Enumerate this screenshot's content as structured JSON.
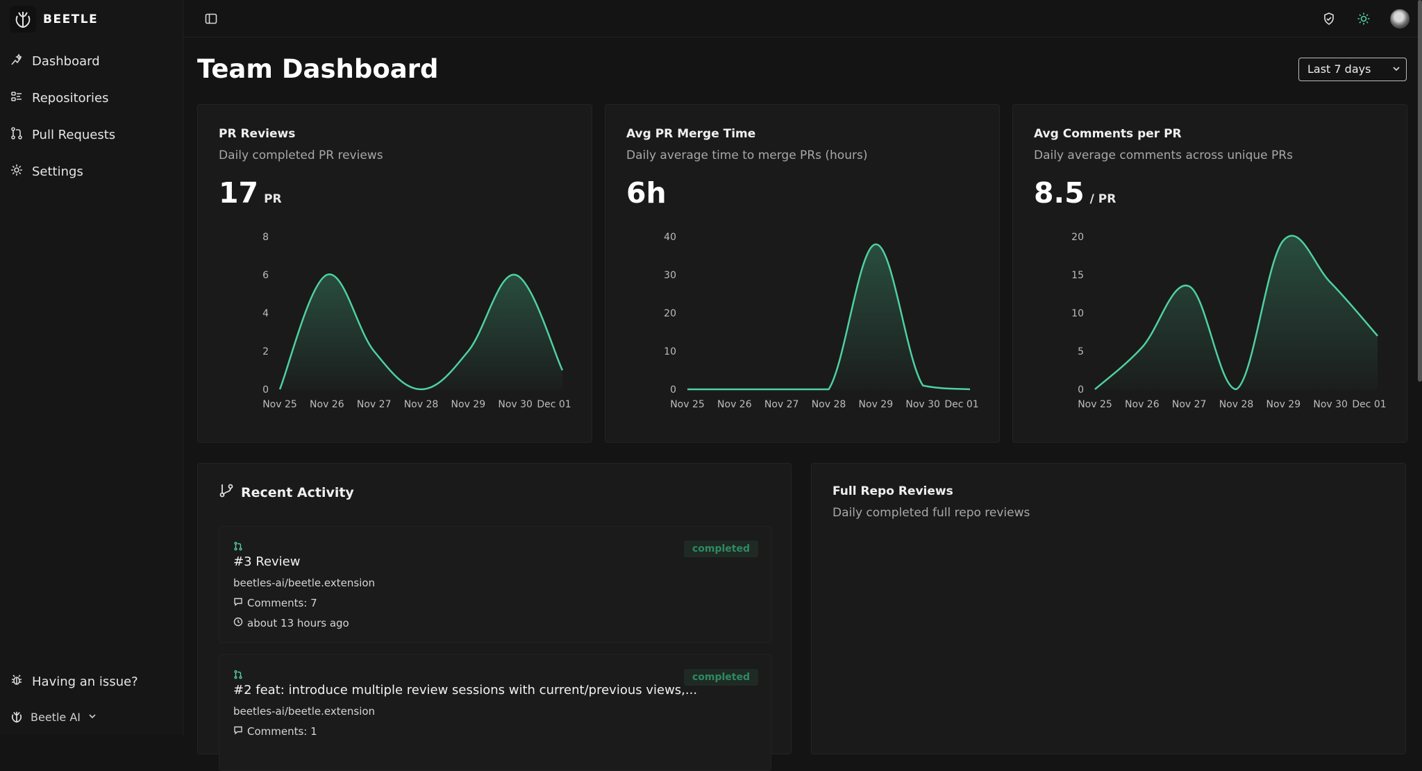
{
  "brand": {
    "name": "BEETLE"
  },
  "sidebar": {
    "items": [
      {
        "label": "Dashboard",
        "icon": "dashboard-sparkle-icon"
      },
      {
        "label": "Repositories",
        "icon": "repositories-icon"
      },
      {
        "label": "Pull Requests",
        "icon": "pull-request-icon"
      },
      {
        "label": "Settings",
        "icon": "gear-icon"
      }
    ],
    "issue_label": "Having an issue?",
    "account_label": "Beetle AI"
  },
  "header": {
    "title": "Team Dashboard",
    "range": "Last 7 days"
  },
  "cards": [
    {
      "title": "PR Reviews",
      "subtitle": "Daily completed PR reviews",
      "value": "17",
      "unit": "PR"
    },
    {
      "title": "Avg PR Merge Time",
      "subtitle": "Daily average time to merge PRs (hours)",
      "value": "6h",
      "unit": ""
    },
    {
      "title": "Avg Comments per PR",
      "subtitle": "Daily average comments across unique PRs",
      "value": "8.5",
      "unit": "/ PR"
    }
  ],
  "chart_data": [
    {
      "type": "area",
      "categories": [
        "Nov 25",
        "Nov 26",
        "Nov 27",
        "Nov 28",
        "Nov 29",
        "Nov 30",
        "Dec 01"
      ],
      "values": [
        0,
        6,
        2,
        0,
        2,
        6,
        1
      ],
      "ylim": [
        0,
        8
      ],
      "yticks": [
        0,
        2,
        4,
        6,
        8
      ],
      "color": "#4fd1a0"
    },
    {
      "type": "area",
      "categories": [
        "Nov 25",
        "Nov 26",
        "Nov 27",
        "Nov 28",
        "Nov 29",
        "Nov 30",
        "Dec 01"
      ],
      "values": [
        0,
        0,
        0,
        0,
        38,
        1,
        0
      ],
      "ylim": [
        0,
        40
      ],
      "yticks": [
        0,
        10,
        20,
        30,
        40
      ],
      "color": "#4fd1a0"
    },
    {
      "type": "area",
      "categories": [
        "Nov 25",
        "Nov 26",
        "Nov 27",
        "Nov 28",
        "Nov 29",
        "Nov 30",
        "Dec 01"
      ],
      "values": [
        0,
        5.5,
        13.5,
        0,
        19.5,
        14,
        7
      ],
      "ylim": [
        0,
        20
      ],
      "yticks": [
        0,
        5,
        10,
        15,
        20
      ],
      "color": "#4fd1a0"
    }
  ],
  "activity": {
    "title": "Recent Activity",
    "items": [
      {
        "title": "#3 Review",
        "repo": "beetles-ai/beetle.extension",
        "comments": "Comments: 7",
        "time": "about 13 hours ago",
        "status": "completed"
      },
      {
        "title": "#2 feat: introduce multiple review sessions with current/previous views,...",
        "repo": "beetles-ai/beetle.extension",
        "comments": "Comments: 1",
        "time": "",
        "status": "completed"
      }
    ]
  },
  "fullrepo": {
    "title": "Full Repo Reviews",
    "subtitle": "Daily completed full repo reviews"
  }
}
